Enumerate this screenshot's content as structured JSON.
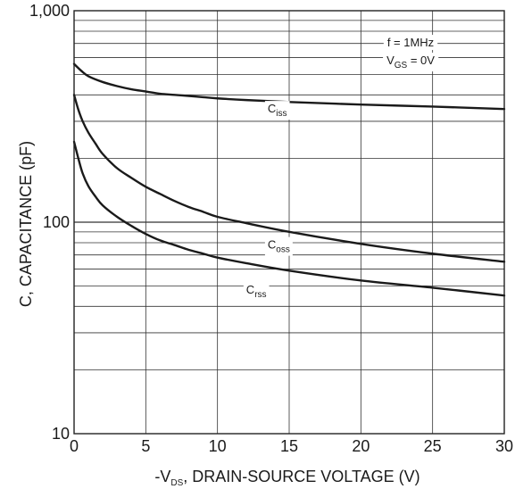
{
  "chart_data": {
    "type": "line",
    "xlabel": {
      "prefix": "-V",
      "sub": "DS",
      "suffix": ", DRAIN-SOURCE VOLTAGE (V)"
    },
    "ylabel": "C, CAPACITANCE (pF)",
    "xlim": [
      0,
      30
    ],
    "ylim": [
      10,
      1000
    ],
    "yscale": "log",
    "grid": true,
    "x_ticks": [
      0,
      5,
      10,
      15,
      20,
      25,
      30
    ],
    "x_tick_labels": [
      "0",
      "5",
      "10",
      "15",
      "20",
      "25",
      "30"
    ],
    "y_ticks": [
      10,
      100,
      1000
    ],
    "y_tick_labels": [
      "10",
      "100",
      "1,000"
    ],
    "conditions": [
      {
        "prefix": "f = 1MHz",
        "sub": "",
        "suffix": ""
      },
      {
        "prefix": "V",
        "sub": "GS",
        "suffix": " = 0V"
      }
    ],
    "series": [
      {
        "label_main": "C",
        "label_sub": "iss",
        "label_at": [
          13.5,
          330
        ],
        "x": [
          0,
          0.5,
          1,
          2,
          3,
          4,
          5,
          6,
          7,
          8,
          9,
          10,
          12,
          15,
          20,
          25,
          30
        ],
        "y": [
          560,
          520,
          490,
          460,
          440,
          425,
          415,
          405,
          400,
          395,
          390,
          385,
          378,
          370,
          360,
          352,
          343
        ]
      },
      {
        "label_main": "C",
        "label_sub": "oss",
        "label_at": [
          13.5,
          75
        ],
        "x": [
          0,
          0.3,
          0.6,
          1,
          1.5,
          2,
          3,
          4,
          5,
          6,
          7,
          8,
          9,
          10,
          12,
          15,
          20,
          25,
          30
        ],
        "y": [
          400,
          340,
          300,
          265,
          235,
          210,
          180,
          162,
          147,
          136,
          126,
          118,
          112,
          106,
          99,
          90,
          79,
          71,
          65
        ]
      },
      {
        "label_main": "C",
        "label_sub": "rss",
        "label_at": [
          12,
          46
        ],
        "x": [
          0,
          0.3,
          0.6,
          1,
          1.5,
          2,
          3,
          4,
          5,
          6,
          7,
          8,
          9,
          10,
          12,
          15,
          20,
          25,
          30
        ],
        "y": [
          240,
          200,
          170,
          148,
          132,
          120,
          106,
          96,
          88,
          82,
          78,
          74,
          71,
          68,
          64,
          59,
          53,
          49,
          45
        ]
      }
    ]
  }
}
